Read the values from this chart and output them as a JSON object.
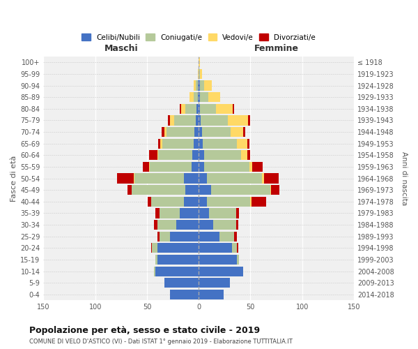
{
  "age_groups": [
    "0-4",
    "5-9",
    "10-14",
    "15-19",
    "20-24",
    "25-29",
    "30-34",
    "35-39",
    "40-44",
    "45-49",
    "50-54",
    "55-59",
    "60-64",
    "65-69",
    "70-74",
    "75-79",
    "80-84",
    "85-89",
    "90-94",
    "95-99",
    "100+"
  ],
  "birth_years": [
    "2014-2018",
    "2009-2013",
    "2004-2008",
    "1999-2003",
    "1994-1998",
    "1989-1993",
    "1984-1988",
    "1979-1983",
    "1974-1978",
    "1969-1973",
    "1964-1968",
    "1959-1963",
    "1954-1958",
    "1949-1953",
    "1944-1948",
    "1939-1943",
    "1934-1938",
    "1929-1933",
    "1924-1928",
    "1919-1923",
    "≤ 1918"
  ],
  "colors": {
    "celibi": "#4472c4",
    "coniugati": "#b5c99a",
    "vedovi": "#ffd966",
    "divorziati": "#c00000"
  },
  "males": {
    "celibi": [
      28,
      33,
      42,
      40,
      40,
      28,
      22,
      18,
      14,
      13,
      14,
      7,
      6,
      5,
      4,
      3,
      2,
      1,
      1,
      0,
      0
    ],
    "coniugati": [
      0,
      0,
      1,
      2,
      5,
      10,
      18,
      20,
      32,
      52,
      48,
      40,
      33,
      30,
      27,
      21,
      11,
      4,
      2,
      0,
      0
    ],
    "vedovi": [
      0,
      0,
      0,
      0,
      0,
      0,
      0,
      0,
      0,
      0,
      1,
      1,
      1,
      2,
      2,
      4,
      4,
      4,
      2,
      1,
      0
    ],
    "divorziati": [
      0,
      0,
      0,
      0,
      1,
      2,
      3,
      4,
      3,
      4,
      16,
      6,
      8,
      2,
      3,
      2,
      1,
      0,
      0,
      0,
      0
    ]
  },
  "females": {
    "celibi": [
      24,
      30,
      43,
      37,
      32,
      20,
      14,
      10,
      8,
      12,
      8,
      5,
      5,
      4,
      3,
      2,
      1,
      1,
      1,
      0,
      0
    ],
    "coniugati": [
      0,
      0,
      0,
      2,
      5,
      14,
      22,
      26,
      42,
      57,
      53,
      44,
      36,
      33,
      28,
      26,
      16,
      8,
      4,
      1,
      0
    ],
    "vedovi": [
      0,
      0,
      0,
      0,
      0,
      0,
      0,
      0,
      1,
      1,
      2,
      3,
      6,
      10,
      12,
      20,
      16,
      12,
      8,
      2,
      1
    ],
    "divorziati": [
      0,
      0,
      0,
      0,
      1,
      3,
      2,
      3,
      14,
      8,
      14,
      10,
      3,
      2,
      2,
      2,
      1,
      0,
      0,
      0,
      0
    ]
  },
  "xlim": 150,
  "title": "Popolazione per età, sesso e stato civile - 2019",
  "subtitle": "COMUNE DI VELO D'ASTICO (VI) - Dati ISTAT 1° gennaio 2019 - Elaborazione TUTTITALIA.IT",
  "xlabel_left": "Maschi",
  "xlabel_right": "Femmine",
  "ylabel_left": "Fasce di età",
  "ylabel_right": "Anni di nascita",
  "legend_labels": [
    "Celibi/Nubili",
    "Coniugati/e",
    "Vedovi/e",
    "Divorziati/e"
  ],
  "background_color": "#f0f0f0",
  "grid_color": "#ffffff",
  "dot_line_color": "#aaaaaa"
}
